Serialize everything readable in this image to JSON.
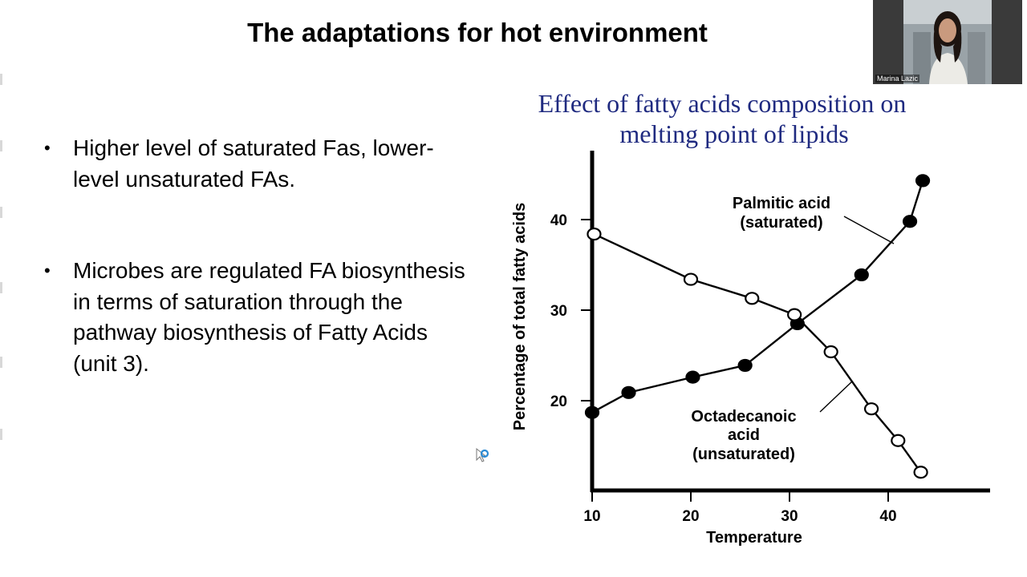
{
  "slide": {
    "title": "The adaptations for hot environment",
    "bullets": [
      {
        "marker": "•",
        "text": "Higher level of saturated Fas, lower-level unsaturated FAs."
      },
      {
        "marker": "•",
        "text": "Microbes are regulated FA biosynthesis in terms of saturation through the pathway biosynthesis of Fatty Acids (unit 3)."
      }
    ]
  },
  "figure": {
    "title_line1": "Effect of fatty acids composition on",
    "title_line2": "melting point of lipids",
    "title_color": "#1f2a80"
  },
  "chart_data": {
    "type": "line",
    "title": "Effect of fatty acids composition on melting point of lipids",
    "xlabel": "Temperature",
    "ylabel": "Percentage of total fatty acids",
    "xlim": [
      10,
      50
    ],
    "ylim": [
      10,
      48
    ],
    "x_ticks": [
      10,
      20,
      30,
      40
    ],
    "y_ticks": [
      20,
      30,
      40
    ],
    "grid": false,
    "series": [
      {
        "name": "Palmitic acid (saturated)",
        "label_lines": [
          "Palmitic acid",
          "(saturated)"
        ],
        "marker": "filled",
        "x": [
          10,
          13.7,
          20.2,
          25.5,
          30.8,
          37.3,
          42.2,
          43.5
        ],
        "y": [
          18.7,
          20.9,
          22.6,
          23.9,
          28.5,
          33.9,
          39.8,
          44.3
        ]
      },
      {
        "name": "Octadecanoic acid (unsaturated)",
        "label_lines": [
          "Octadecanoic",
          "acid",
          "(unsaturated)"
        ],
        "marker": "open",
        "x": [
          10.2,
          20,
          26.2,
          30.5,
          34.2,
          38.3,
          41,
          43.3
        ],
        "y": [
          38.4,
          33.4,
          31.3,
          29.5,
          25.4,
          19.1,
          15.6,
          12.1
        ]
      }
    ]
  },
  "participant": {
    "name": "Marina Lazic"
  }
}
